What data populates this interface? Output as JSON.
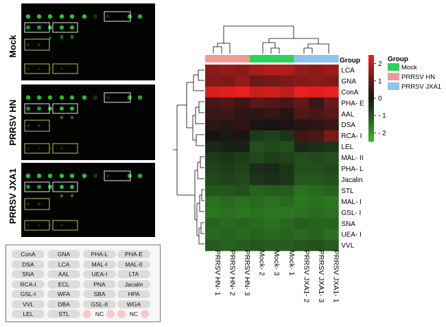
{
  "array_groups": [
    {
      "label": "Mock"
    },
    {
      "label": "PRRSV HN"
    },
    {
      "label": "PRRSV JXA1"
    }
  ],
  "lectin_key": {
    "rows": [
      [
        "ConA",
        "GNA",
        "PHA-L",
        "PHA-E"
      ],
      [
        "DSA",
        "LCA",
        "MAL-I",
        "MAL-II"
      ],
      [
        "SNA",
        "AAL",
        "UEA-I",
        "LTA"
      ],
      [
        "RCA-I",
        "ECL",
        "PNA",
        "Jacalin"
      ],
      [
        "GSL-I",
        "WFA",
        "SBA",
        "HPA"
      ],
      [
        "VVL",
        "DBA",
        "GSL-II",
        "WGA"
      ],
      [
        "LEL",
        "STL",
        "NC",
        "NC"
      ]
    ]
  },
  "heatmap": {
    "group_title": "Group",
    "columns": [
      "PRRSV HN- 1",
      "PRRSV HN- 2",
      "PRRSV HN- 3",
      "Mock- 2",
      "Mock- 3",
      "Mock- 1",
      "PRRSV JXA1- 2",
      "PRRSV JXA1- 3",
      "PRRSV JXA1- 1"
    ],
    "column_groups": [
      "PRRSV HN",
      "PRRSV HN",
      "PRRSV HN",
      "Mock",
      "Mock",
      "Mock",
      "PRRSV JXA1",
      "PRRSV JXA1",
      "PRRSV JXA1"
    ],
    "rows": [
      "LCA",
      "GNA",
      "ConA",
      "PHA- E",
      "AAL",
      "DSA",
      "RCA- I",
      "LEL",
      "MAL- II",
      "PHA- L",
      "Jacalin",
      "STL",
      "MAL- I",
      "GSL- I",
      "SNA",
      "UEA- I",
      "VVL"
    ],
    "values": [
      [
        1.4,
        1.5,
        1.4,
        1.7,
        1.9,
        1.8,
        1.5,
        1.4,
        1.6
      ],
      [
        1.3,
        1.2,
        1.5,
        1.0,
        1.1,
        1.2,
        1.3,
        1.4,
        1.3
      ],
      [
        2.3,
        2.4,
        2.5,
        2.1,
        2.2,
        2.0,
        2.6,
        2.4,
        2.5
      ],
      [
        0.6,
        0.7,
        0.5,
        0.8,
        0.7,
        0.6,
        0.9,
        0.4,
        1.0
      ],
      [
        0.4,
        0.5,
        0.3,
        0.3,
        0.4,
        0.2,
        0.7,
        0.6,
        0.8
      ],
      [
        0.3,
        0.2,
        0.3,
        0.1,
        0.0,
        0.1,
        0.2,
        0.3,
        0.4
      ],
      [
        0.0,
        -0.1,
        0.1,
        -0.6,
        -0.7,
        -0.5,
        0.5,
        0.6,
        1.2
      ],
      [
        -0.3,
        -0.2,
        -0.2,
        -0.9,
        -0.8,
        -0.9,
        -0.3,
        -0.4,
        -0.5
      ],
      [
        -0.6,
        -0.5,
        -0.6,
        -0.8,
        -0.6,
        -0.7,
        -0.9,
        -0.8,
        -0.9
      ],
      [
        -0.7,
        -0.6,
        -0.7,
        -0.4,
        -0.3,
        -0.5,
        -0.9,
        -0.9,
        -0.8
      ],
      [
        -0.8,
        -0.7,
        -0.8,
        -0.5,
        -0.4,
        -0.5,
        -1.0,
        -1.0,
        -0.9
      ],
      [
        -1.0,
        -1.0,
        -0.9,
        -1.2,
        -1.1,
        -1.1,
        -1.4,
        -1.3,
        -1.2
      ],
      [
        -1.4,
        -1.3,
        -1.4,
        -1.3,
        -1.4,
        -1.3,
        -1.5,
        -1.4,
        -1.5
      ],
      [
        -1.5,
        -1.4,
        -1.5,
        -1.4,
        -1.5,
        -1.5,
        -1.4,
        -1.3,
        -1.4
      ],
      [
        -1.2,
        -1.3,
        -1.2,
        -1.3,
        -1.4,
        -1.3,
        -1.1,
        -1.2,
        -1.2
      ],
      [
        -1.3,
        -1.2,
        -1.3,
        -1.2,
        -1.3,
        -1.2,
        -1.3,
        -1.2,
        -1.4
      ],
      [
        -1.1,
        -1.2,
        -1.1,
        -1.0,
        -1.1,
        -1.1,
        -1.0,
        -0.9,
        -1.1
      ]
    ],
    "colorbar": {
      "ticks": [
        2,
        1,
        0,
        -1,
        -2
      ],
      "tick_labels": [
        "2",
        "1",
        "0",
        "- 1",
        "- 2"
      ],
      "range": [
        -2.5,
        2.5
      ]
    },
    "legend": {
      "title": "Group",
      "items": [
        {
          "label": "Mock",
          "color": "#2bd35a"
        },
        {
          "label": "PRRSV HN",
          "color": "#f09a94"
        },
        {
          "label": "PRRSV JXA1",
          "color": "#90c3ef"
        }
      ]
    },
    "colors": {
      "high": "#e8201e",
      "mid": "#141414",
      "low": "#3cb82a"
    }
  }
}
